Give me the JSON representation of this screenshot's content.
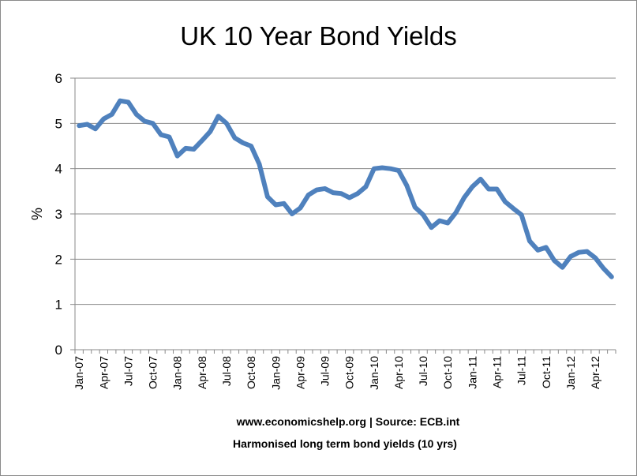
{
  "chart_data": {
    "type": "line",
    "title": "UK 10 Year Bond Yields",
    "xlabel": "",
    "ylabel": "%",
    "ylim": [
      0,
      6
    ],
    "yticks": [
      0,
      1,
      2,
      3,
      4,
      5,
      6
    ],
    "grid": "horizontal",
    "legend": "none",
    "line_color": "#4f81bd",
    "x": [
      "Jan-07",
      "Feb-07",
      "Mar-07",
      "Apr-07",
      "May-07",
      "Jun-07",
      "Jul-07",
      "Aug-07",
      "Sep-07",
      "Oct-07",
      "Nov-07",
      "Dec-07",
      "Jan-08",
      "Feb-08",
      "Mar-08",
      "Apr-08",
      "May-08",
      "Jun-08",
      "Jul-08",
      "Aug-08",
      "Sep-08",
      "Oct-08",
      "Nov-08",
      "Dec-08",
      "Jan-09",
      "Feb-09",
      "Mar-09",
      "Apr-09",
      "May-09",
      "Jun-09",
      "Jul-09",
      "Aug-09",
      "Sep-09",
      "Oct-09",
      "Nov-09",
      "Dec-09",
      "Jan-10",
      "Feb-10",
      "Mar-10",
      "Apr-10",
      "May-10",
      "Jun-10",
      "Jul-10",
      "Aug-10",
      "Sep-10",
      "Oct-10",
      "Nov-10",
      "Dec-10",
      "Jan-11",
      "Feb-11",
      "Mar-11",
      "Apr-11",
      "May-11",
      "Jun-11",
      "Jul-11",
      "Aug-11",
      "Sep-11",
      "Oct-11",
      "Nov-11",
      "Dec-11",
      "Jan-12",
      "Feb-12",
      "Mar-12",
      "Apr-12",
      "May-12",
      "Jun-12"
    ],
    "x_tick_labels": [
      "Jan-07",
      "Apr-07",
      "Jul-07",
      "Oct-07",
      "Jan-08",
      "Apr-08",
      "Jul-08",
      "Oct-08",
      "Jan-09",
      "Apr-09",
      "Jul-09",
      "Oct-09",
      "Jan-10",
      "Apr-10",
      "Jul-10",
      "Oct-10",
      "Jan-11",
      "Apr-11",
      "Jul-11",
      "Oct-11",
      "Jan-12",
      "Apr-12"
    ],
    "series": [
      {
        "values": [
          4.95,
          4.98,
          4.88,
          5.1,
          5.2,
          5.5,
          5.47,
          5.2,
          5.05,
          5.0,
          4.75,
          4.7,
          4.28,
          4.45,
          4.43,
          4.62,
          4.82,
          5.16,
          5.0,
          4.68,
          4.57,
          4.5,
          4.1,
          3.38,
          3.2,
          3.23,
          3.0,
          3.13,
          3.42,
          3.53,
          3.56,
          3.47,
          3.45,
          3.36,
          3.45,
          3.6,
          4.0,
          4.02,
          4.0,
          3.96,
          3.63,
          3.15,
          2.98,
          2.7,
          2.85,
          2.8,
          3.03,
          3.36,
          3.6,
          3.77,
          3.55,
          3.55,
          3.27,
          3.12,
          2.98,
          2.4,
          2.2,
          2.26,
          1.97,
          1.82,
          2.06,
          2.15,
          2.17,
          2.03,
          1.8,
          1.61
        ]
      }
    ]
  },
  "footnote_line1": "www.economicshelp.org | Source: ECB.int",
  "footnote_line2": "Harmonised long term bond yields (10 yrs)"
}
